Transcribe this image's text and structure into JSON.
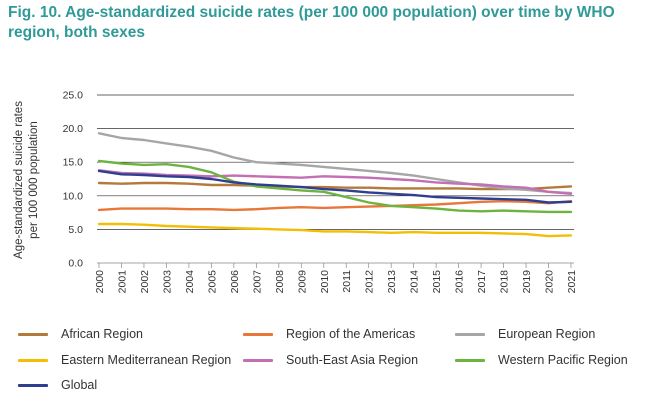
{
  "figure": {
    "title": "Fig. 10. Age-standardized suicide rates (per 100 000 population) over time by WHO region, both sexes"
  },
  "chart_data": {
    "type": "line",
    "title": "Fig. 10. Age-standardized suicide rates (per 100 000 population) over time by WHO region, both sexes",
    "xlabel": "",
    "ylabel_lines": [
      "Age-standardized suicide rates",
      "per 100 000 population"
    ],
    "ylim": [
      0,
      25
    ],
    "y_ticks": [
      "0.0",
      "5.0",
      "10.0",
      "15.0",
      "20.0",
      "25.0"
    ],
    "grid": "horizontal",
    "legend_position": "bottom",
    "x": [
      "2000",
      "2001",
      "2002",
      "2003",
      "2004",
      "2005",
      "2006",
      "2007",
      "2008",
      "2009",
      "2010",
      "2011",
      "2012",
      "2013",
      "2014",
      "2015",
      "2016",
      "2017",
      "2018",
      "2019",
      "2020",
      "2021"
    ],
    "series": [
      {
        "name": "African Region",
        "color": "#b47a3c",
        "values": [
          11.9,
          11.8,
          11.9,
          11.9,
          11.8,
          11.6,
          11.6,
          11.5,
          11.4,
          11.3,
          11.3,
          11.2,
          11.2,
          11.1,
          11.1,
          11.1,
          11.1,
          11.0,
          11.0,
          11.0,
          11.2,
          11.4
        ]
      },
      {
        "name": "Region of the Americas",
        "color": "#e8773a",
        "values": [
          7.9,
          8.1,
          8.1,
          8.1,
          8.0,
          8.0,
          7.9,
          8.0,
          8.2,
          8.3,
          8.2,
          8.3,
          8.4,
          8.5,
          8.6,
          8.7,
          8.9,
          9.1,
          9.2,
          9.1,
          8.9,
          9.2
        ]
      },
      {
        "name": "European Region",
        "color": "#a6a6a6",
        "values": [
          19.3,
          18.6,
          18.3,
          17.8,
          17.3,
          16.7,
          15.7,
          15.0,
          14.8,
          14.6,
          14.3,
          14.0,
          13.7,
          13.4,
          13.0,
          12.5,
          12.0,
          11.5,
          11.1,
          10.9,
          10.6,
          10.4
        ]
      },
      {
        "name": "Eastern Mediterranean Region",
        "color": "#f2bf05",
        "values": [
          5.8,
          5.8,
          5.7,
          5.5,
          5.4,
          5.3,
          5.2,
          5.1,
          5.0,
          4.9,
          4.7,
          4.7,
          4.6,
          4.5,
          4.6,
          4.5,
          4.5,
          4.5,
          4.4,
          4.3,
          4.0,
          4.1
        ]
      },
      {
        "name": "South-East Asia Region",
        "color": "#c36fb3",
        "values": [
          13.8,
          13.4,
          13.3,
          13.1,
          13.0,
          12.9,
          13.0,
          12.9,
          12.8,
          12.7,
          12.9,
          12.8,
          12.7,
          12.5,
          12.3,
          12.0,
          11.8,
          11.7,
          11.4,
          11.2,
          10.6,
          10.3
        ]
      },
      {
        "name": "Western Pacific Region",
        "color": "#6db33f",
        "values": [
          15.2,
          14.8,
          14.6,
          14.7,
          14.3,
          13.5,
          12.1,
          11.4,
          11.1,
          10.8,
          10.6,
          9.8,
          9.0,
          8.5,
          8.3,
          8.1,
          7.8,
          7.7,
          7.8,
          7.7,
          7.6,
          7.6
        ]
      },
      {
        "name": "Global",
        "color": "#2e3f8f",
        "values": [
          13.7,
          13.2,
          13.1,
          12.9,
          12.8,
          12.5,
          12.0,
          11.7,
          11.5,
          11.3,
          11.0,
          10.8,
          10.5,
          10.3,
          10.1,
          9.8,
          9.7,
          9.6,
          9.5,
          9.4,
          9.0,
          9.1
        ]
      }
    ]
  }
}
